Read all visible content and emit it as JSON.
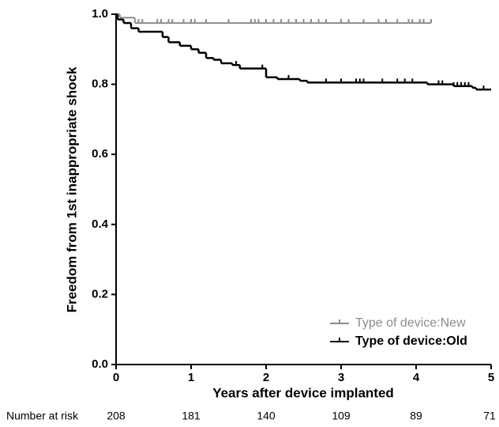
{
  "chart_data": {
    "type": "step",
    "ylabel": "Freedom from 1st inappropriate shock",
    "xlabel": "Years after device implanted",
    "xlim": [
      0,
      5
    ],
    "xticks": [
      0,
      1,
      2,
      3,
      4,
      5
    ],
    "ylim": [
      0,
      1
    ],
    "yticks": [
      {
        "value": 0,
        "label": "0.0"
      },
      {
        "value": 0.2,
        "label": "0.2"
      },
      {
        "value": 0.4,
        "label": "0.4"
      },
      {
        "value": 0.6,
        "label": "0.6"
      },
      {
        "value": 0.8,
        "label": "0.8"
      },
      {
        "value": 1,
        "label": "1.0"
      }
    ],
    "legend": "lower right",
    "series": [
      {
        "name": "Type of device:New",
        "color": "#8c8c8c",
        "x": [
          0,
          0.05,
          0.25,
          4.2
        ],
        "values": [
          1.0,
          0.99,
          0.975,
          0.975
        ],
        "censored": [
          0.3,
          0.35,
          0.55,
          0.6,
          0.7,
          0.75,
          0.9,
          1.0,
          1.05,
          1.2,
          1.5,
          1.8,
          1.85,
          1.9,
          2.0,
          2.1,
          2.2,
          2.3,
          2.4,
          2.5,
          2.6,
          2.7,
          2.8,
          3.0,
          3.1,
          3.3,
          3.5,
          3.6,
          3.75,
          3.9,
          3.95,
          4.05,
          4.1,
          4.2
        ]
      },
      {
        "name": "Type of device:Old",
        "color": "#000000",
        "x": [
          0,
          0.02,
          0.1,
          0.2,
          0.3,
          0.62,
          0.7,
          0.85,
          1.0,
          1.1,
          1.2,
          1.3,
          1.4,
          1.55,
          1.65,
          2.0,
          2.15,
          2.45,
          2.55,
          4.15,
          4.5,
          4.75,
          4.8,
          5.0
        ],
        "values": [
          1.0,
          0.985,
          0.975,
          0.96,
          0.95,
          0.935,
          0.92,
          0.91,
          0.9,
          0.89,
          0.875,
          0.87,
          0.86,
          0.855,
          0.845,
          0.82,
          0.815,
          0.81,
          0.805,
          0.8,
          0.795,
          0.79,
          0.785,
          0.785
        ],
        "censored": [
          1.6,
          1.95,
          2.3,
          2.8,
          3.0,
          3.2,
          3.25,
          3.3,
          3.55,
          3.75,
          3.85,
          3.95,
          4.3,
          4.35,
          4.5,
          4.55,
          4.6,
          4.65,
          4.7,
          4.9
        ]
      }
    ],
    "risk_label": "Number at risk",
    "at_risk": [
      208,
      181,
      140,
      109,
      89,
      71
    ]
  }
}
